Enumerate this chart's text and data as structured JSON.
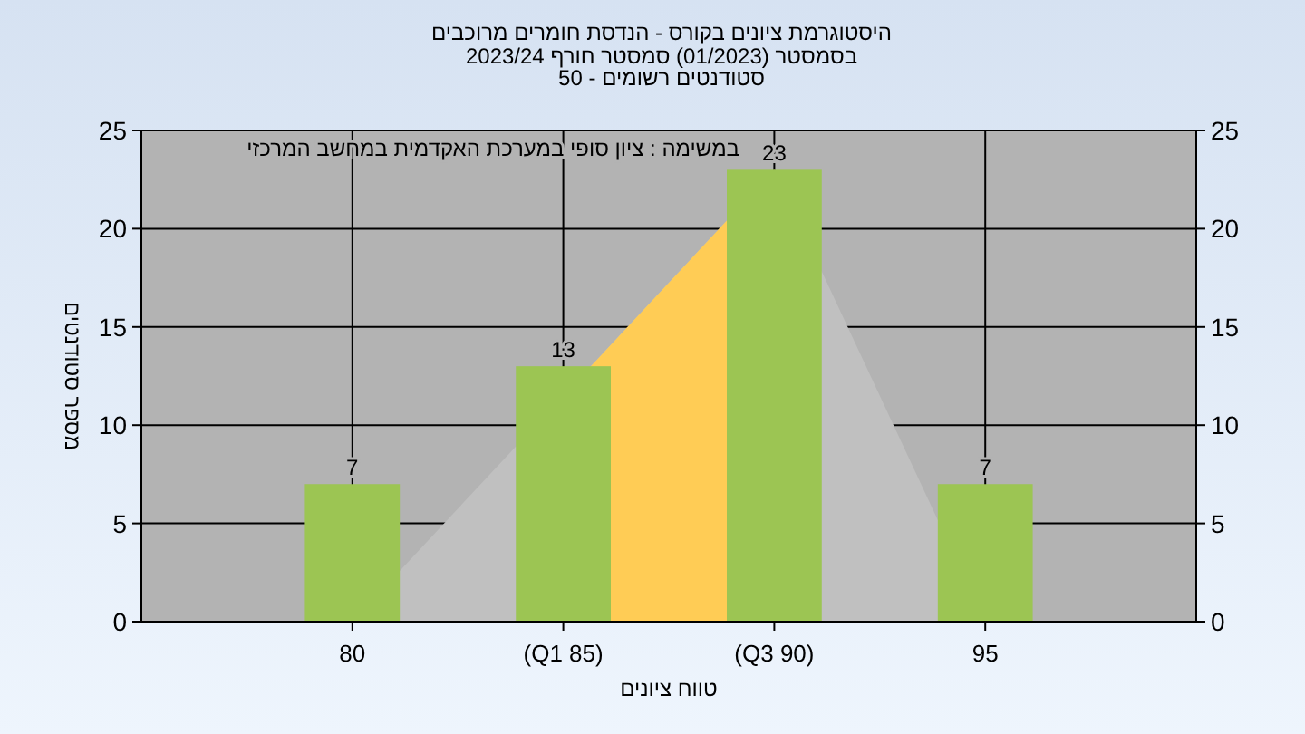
{
  "chart_data": {
    "type": "bar",
    "title": "היסטוגרמת ציונים בקורס - הנדסת חומרים מרוכבים",
    "subtitle": "בסמסטר  (01/2023)  סמסטר חורף 2023/24\nסטודנטים רשומים - 50",
    "xlabel": "טווח ציונים",
    "ylabel": "מספר סטודנטים",
    "annotations": [
      "במשימה : ציון סופי במערכת האקדמית במחשב המרכזי"
    ],
    "categories": [
      "80",
      "(Q1 85)",
      "(Q3 90)",
      "95"
    ],
    "series": [
      {
        "type": "area",
        "color": "#c0c0c0",
        "values": [
          0,
          null,
          23,
          0
        ]
      },
      {
        "color": "#9cc553",
        "values": [
          7,
          13,
          23,
          7
        ],
        "value_labels": [
          "7",
          "13",
          "23",
          "7"
        ]
      }
    ],
    "bands": [
      {
        "axis": "x",
        "from": "(Q1 85)",
        "to": "(Q3 90)",
        "color": "#ffcc55"
      }
    ],
    "ylim": [
      0,
      25
    ],
    "yticks": [
      0,
      5,
      10,
      15,
      20,
      25
    ],
    "y2lim": [
      0,
      25
    ],
    "y2ticks": [
      0,
      5,
      10,
      15,
      20,
      25
    ],
    "grid": true
  }
}
